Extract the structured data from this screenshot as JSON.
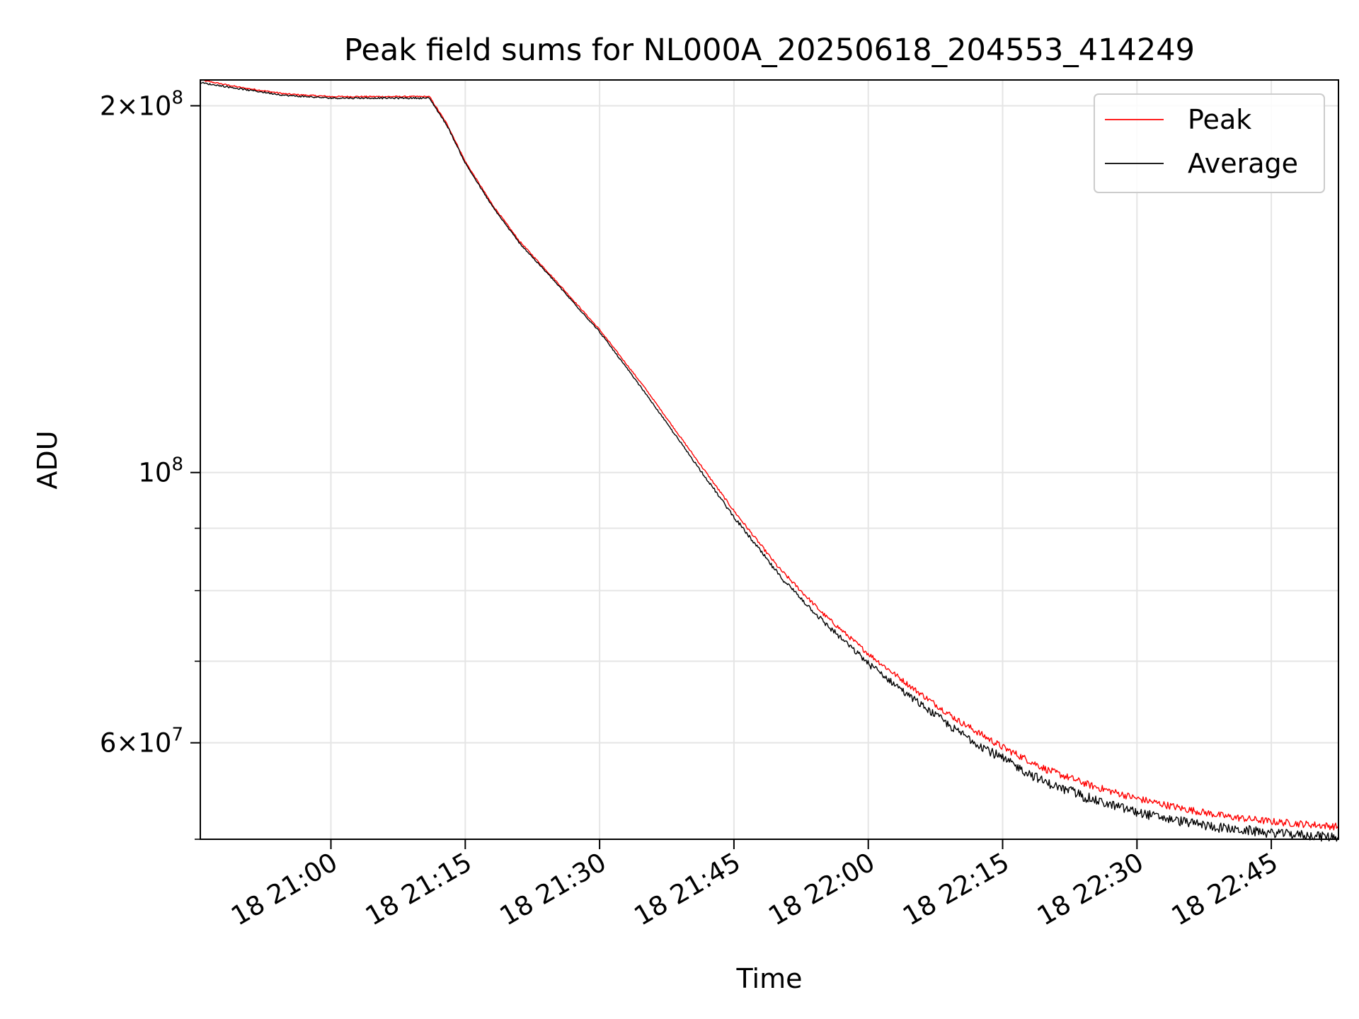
{
  "chart_data": {
    "type": "line",
    "title": "Peak field sums for NL000A_20250618_204553_414249",
    "xlabel": "Time",
    "ylabel": "ADU",
    "yscale": "log",
    "grid": true,
    "legend_position": "top-right",
    "xlim": [
      "2025-06-18 20:45:25",
      "2025-06-18 22:52:30"
    ],
    "ylim": [
      50000000,
      210000000
    ],
    "x_ticks": [
      {
        "value": "2025-06-18 21:00",
        "label": "18 21:00"
      },
      {
        "value": "2025-06-18 21:15",
        "label": "18 21:15"
      },
      {
        "value": "2025-06-18 21:30",
        "label": "18 21:30"
      },
      {
        "value": "2025-06-18 21:45",
        "label": "18 21:45"
      },
      {
        "value": "2025-06-18 22:00",
        "label": "18 22:00"
      },
      {
        "value": "2025-06-18 22:15",
        "label": "18 22:15"
      },
      {
        "value": "2025-06-18 22:30",
        "label": "18 22:30"
      },
      {
        "value": "2025-06-18 22:45",
        "label": "18 22:45"
      }
    ],
    "y_major_ticks": [
      {
        "value": 200000000,
        "base": "2×10",
        "exp": "8"
      },
      {
        "value": 100000000,
        "base": "10",
        "exp": "8"
      },
      {
        "value": 60000000,
        "base": "6×10",
        "exp": "7"
      }
    ],
    "y_minor_ticks": [
      50000000,
      70000000,
      80000000,
      90000000
    ],
    "series": [
      {
        "name": "Peak",
        "color": "#ff0000",
        "x": [
          "2025-06-18 20:45:25",
          "2025-06-18 20:50",
          "2025-06-18 20:55",
          "2025-06-18 21:00",
          "2025-06-18 21:05",
          "2025-06-18 21:10",
          "2025-06-18 21:11",
          "2025-06-18 21:13",
          "2025-06-18 21:15",
          "2025-06-18 21:18",
          "2025-06-18 21:21",
          "2025-06-18 21:25",
          "2025-06-18 21:30",
          "2025-06-18 21:35",
          "2025-06-18 21:40",
          "2025-06-18 21:45",
          "2025-06-18 21:50",
          "2025-06-18 21:55",
          "2025-06-18 22:00",
          "2025-06-18 22:05",
          "2025-06-18 22:10",
          "2025-06-18 22:15",
          "2025-06-18 22:20",
          "2025-06-18 22:25",
          "2025-06-18 22:30",
          "2025-06-18 22:35",
          "2025-06-18 22:40",
          "2025-06-18 22:45",
          "2025-06-18 22:52:30"
        ],
        "values": [
          210000000,
          207000000,
          204500000,
          203500000,
          203500000,
          203500000,
          203500000,
          193000000,
          180000000,
          166000000,
          155000000,
          144000000,
          131000000,
          117500000,
          104500000,
          93000000,
          83500000,
          76500000,
          71000000,
          66500000,
          62600000,
          59500000,
          57000000,
          55300000,
          54000000,
          53000000,
          52200000,
          51700000,
          51200000
        ]
      },
      {
        "name": "Average",
        "color": "#000000",
        "x": [
          "2025-06-18 20:45:25",
          "2025-06-18 20:50",
          "2025-06-18 20:55",
          "2025-06-18 21:00",
          "2025-06-18 21:05",
          "2025-06-18 21:10",
          "2025-06-18 21:11",
          "2025-06-18 21:13",
          "2025-06-18 21:15",
          "2025-06-18 21:18",
          "2025-06-18 21:21",
          "2025-06-18 21:25",
          "2025-06-18 21:30",
          "2025-06-18 21:35",
          "2025-06-18 21:40",
          "2025-06-18 21:45",
          "2025-06-18 21:50",
          "2025-06-18 21:55",
          "2025-06-18 22:00",
          "2025-06-18 22:05",
          "2025-06-18 22:10",
          "2025-06-18 22:15",
          "2025-06-18 22:20",
          "2025-06-18 22:25",
          "2025-06-18 22:30",
          "2025-06-18 22:35",
          "2025-06-18 22:40",
          "2025-06-18 22:45",
          "2025-06-18 22:52:30"
        ],
        "values": [
          209000000,
          206500000,
          204000000,
          203000000,
          203000000,
          203000000,
          203000000,
          192500000,
          179500000,
          165500000,
          154500000,
          143500000,
          130500000,
          116500000,
          103500000,
          92000000,
          82500000,
          75500000,
          69800000,
          65300000,
          61400000,
          58300000,
          55700000,
          54000000,
          52700000,
          51800000,
          51100000,
          50700000,
          50300000
        ]
      }
    ]
  }
}
